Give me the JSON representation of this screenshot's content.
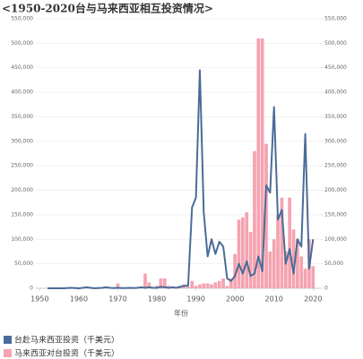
{
  "chart_data": {
    "type": "bar-line",
    "title": "<1950-2020台与马来西亚相互投资情况>",
    "x_label": "年份",
    "x": [
      1952,
      1953,
      1954,
      1955,
      1956,
      1957,
      1958,
      1959,
      1960,
      1961,
      1962,
      1963,
      1964,
      1965,
      1966,
      1967,
      1968,
      1969,
      1970,
      1971,
      1972,
      1973,
      1974,
      1975,
      1976,
      1977,
      1978,
      1979,
      1980,
      1981,
      1982,
      1983,
      1984,
      1985,
      1986,
      1987,
      1988,
      1989,
      1990,
      1991,
      1992,
      1993,
      1994,
      1995,
      1996,
      1997,
      1998,
      1999,
      2000,
      2001,
      2002,
      2003,
      2004,
      2005,
      2006,
      2007,
      2008,
      2009,
      2010,
      2011,
      2012,
      2013,
      2014,
      2015,
      2016,
      2017,
      2018,
      2019,
      2020
    ],
    "series": [
      {
        "name": "台赴马来西亚投资（千美元）",
        "type": "line",
        "axis": "y2",
        "color": "#4a6c98",
        "values": [
          0,
          0,
          0,
          0,
          0,
          500,
          1000,
          500,
          0,
          1000,
          2000,
          1000,
          0,
          500,
          1000,
          2000,
          1000,
          500,
          1000,
          500,
          500,
          1000,
          500,
          1000,
          2000,
          1000,
          2000,
          1000,
          1000,
          3000,
          2000,
          1000,
          2000,
          1000,
          3000,
          5000,
          5000,
          165000,
          185000,
          445000,
          155000,
          65000,
          100000,
          70000,
          95000,
          85000,
          20000,
          15000,
          25000,
          50000,
          30000,
          55000,
          25000,
          30000,
          65000,
          35000,
          210000,
          195000,
          370000,
          140000,
          160000,
          50000,
          80000,
          30000,
          100000,
          85000,
          315000,
          40000,
          100000
        ]
      },
      {
        "name": "马来西亚对台投资（千美元）",
        "type": "bar",
        "axis": "y",
        "color": "#f5a3b0",
        "values": [
          0,
          0,
          0,
          0,
          0,
          0,
          0,
          0,
          0,
          0,
          0,
          0,
          0,
          0,
          0,
          0,
          0,
          0,
          10000,
          2000,
          0,
          0,
          0,
          1000,
          3000,
          30000,
          12000,
          2000,
          5000,
          20000,
          20000,
          5000,
          2000,
          3000,
          5000,
          8000,
          3000,
          15000,
          5000,
          8000,
          10000,
          10000,
          8000,
          12000,
          15000,
          20000,
          5000,
          20000,
          70000,
          140000,
          145000,
          155000,
          115000,
          280000,
          510000,
          510000,
          295000,
          75000,
          100000,
          150000,
          185000,
          75000,
          185000,
          120000,
          100000,
          65000,
          40000,
          100000,
          45000
        ]
      }
    ],
    "xlim": [
      1949,
      2022
    ],
    "xticks": [
      1950,
      1960,
      1970,
      1980,
      1990,
      2000,
      2010,
      2020
    ],
    "ylim": [
      0,
      550000
    ],
    "yticks": [
      0,
      {
        "value": 50000,
        "label": "50,000"
      },
      {
        "value": 100000,
        "label": "100,000"
      },
      {
        "value": 150000,
        "label": "150,000"
      },
      {
        "value": 200000,
        "label": "200,000"
      },
      {
        "value": 250000,
        "label": "250,000"
      },
      {
        "value": 300000,
        "label": "300,000"
      },
      {
        "value": 350000,
        "label": "350,000"
      },
      {
        "value": 400000,
        "label": "400,000"
      },
      {
        "value": 450000,
        "label": "450,000"
      },
      {
        "value": 500000,
        "label": "500,000"
      },
      {
        "value": 550000,
        "label": "550,000"
      }
    ],
    "y2lim": [
      0,
      550000
    ],
    "y2ticks": [
      0,
      {
        "value": 50000,
        "label": "50,000"
      },
      {
        "value": 100000,
        "label": "100,000"
      },
      {
        "value": 150000,
        "label": "150,000"
      },
      {
        "value": 200000,
        "label": "200,000"
      },
      {
        "value": 250000,
        "label": "250,000"
      },
      {
        "value": 300000,
        "label": "300,000"
      },
      {
        "value": 350000,
        "label": "350,000"
      },
      {
        "value": 400000,
        "label": "400,000"
      },
      {
        "value": 450000,
        "label": "450,000"
      },
      {
        "value": 500000,
        "label": "500,000"
      },
      {
        "value": 550000,
        "label": "550,000"
      }
    ],
    "grid": true
  }
}
